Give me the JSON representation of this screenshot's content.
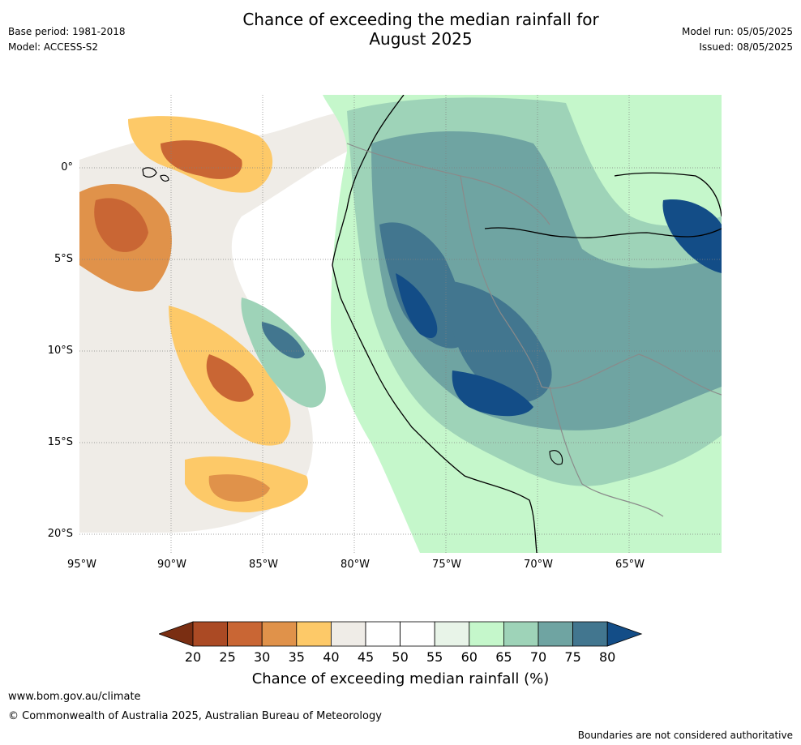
{
  "header": {
    "title_line1": "Chance of exceeding the median rainfall for",
    "title_line2": "August 2025",
    "base_period": "Base period: 1981-2018",
    "model": "Model: ACCESS-S2",
    "model_run": "Model run: 05/05/2025",
    "issued": "Issued: 08/05/2025"
  },
  "map": {
    "lat_labels": [
      "0°",
      "5°S",
      "10°S",
      "15°S",
      "20°S"
    ],
    "lon_labels": [
      "95°W",
      "90°W",
      "85°W",
      "80°W",
      "75°W",
      "70°W",
      "65°W"
    ]
  },
  "colorbar": {
    "ticks": [
      "20",
      "25",
      "30",
      "35",
      "40",
      "45",
      "50",
      "55",
      "60",
      "65",
      "70",
      "75",
      "80"
    ],
    "colors": [
      "#7a2e12",
      "#ab4a24",
      "#c96634",
      "#e0924a",
      "#fdc968",
      "#efece7",
      "#ffffff",
      "#ffffff",
      "#e8f4e8",
      "#c5f7cb",
      "#9ed3b8",
      "#6fa4a2",
      "#42768f",
      "#134d87"
    ],
    "label": "Chance of exceeding median rainfall (%)"
  },
  "footer": {
    "url": "www.bom.gov.au/climate",
    "copyright": "© Commonwealth of Australia 2025, Australian Bureau of Meteorology",
    "disclaimer": "Boundaries are not considered authoritative"
  }
}
